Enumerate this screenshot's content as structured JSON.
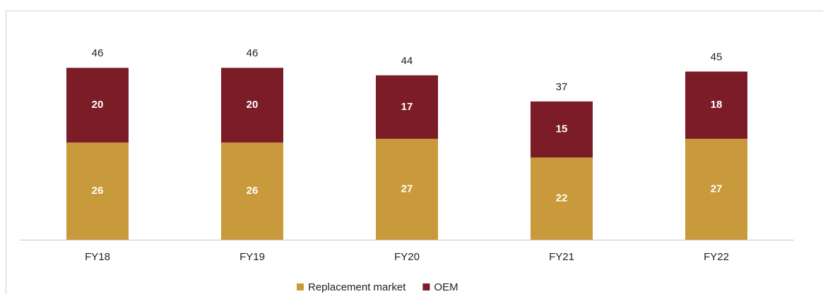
{
  "chart_data": {
    "type": "stacked_bar",
    "categories": [
      "FY18",
      "FY19",
      "FY20",
      "FY21",
      "FY22"
    ],
    "series": [
      {
        "name": "Replacement market",
        "color": "#c99a3b",
        "values": [
          26,
          26,
          27,
          22,
          27
        ]
      },
      {
        "name": "OEM",
        "color": "#7b1c27",
        "values": [
          20,
          20,
          17,
          15,
          18
        ]
      }
    ],
    "totals": [
      46,
      46,
      44,
      37,
      45
    ],
    "legend": "bottom"
  }
}
